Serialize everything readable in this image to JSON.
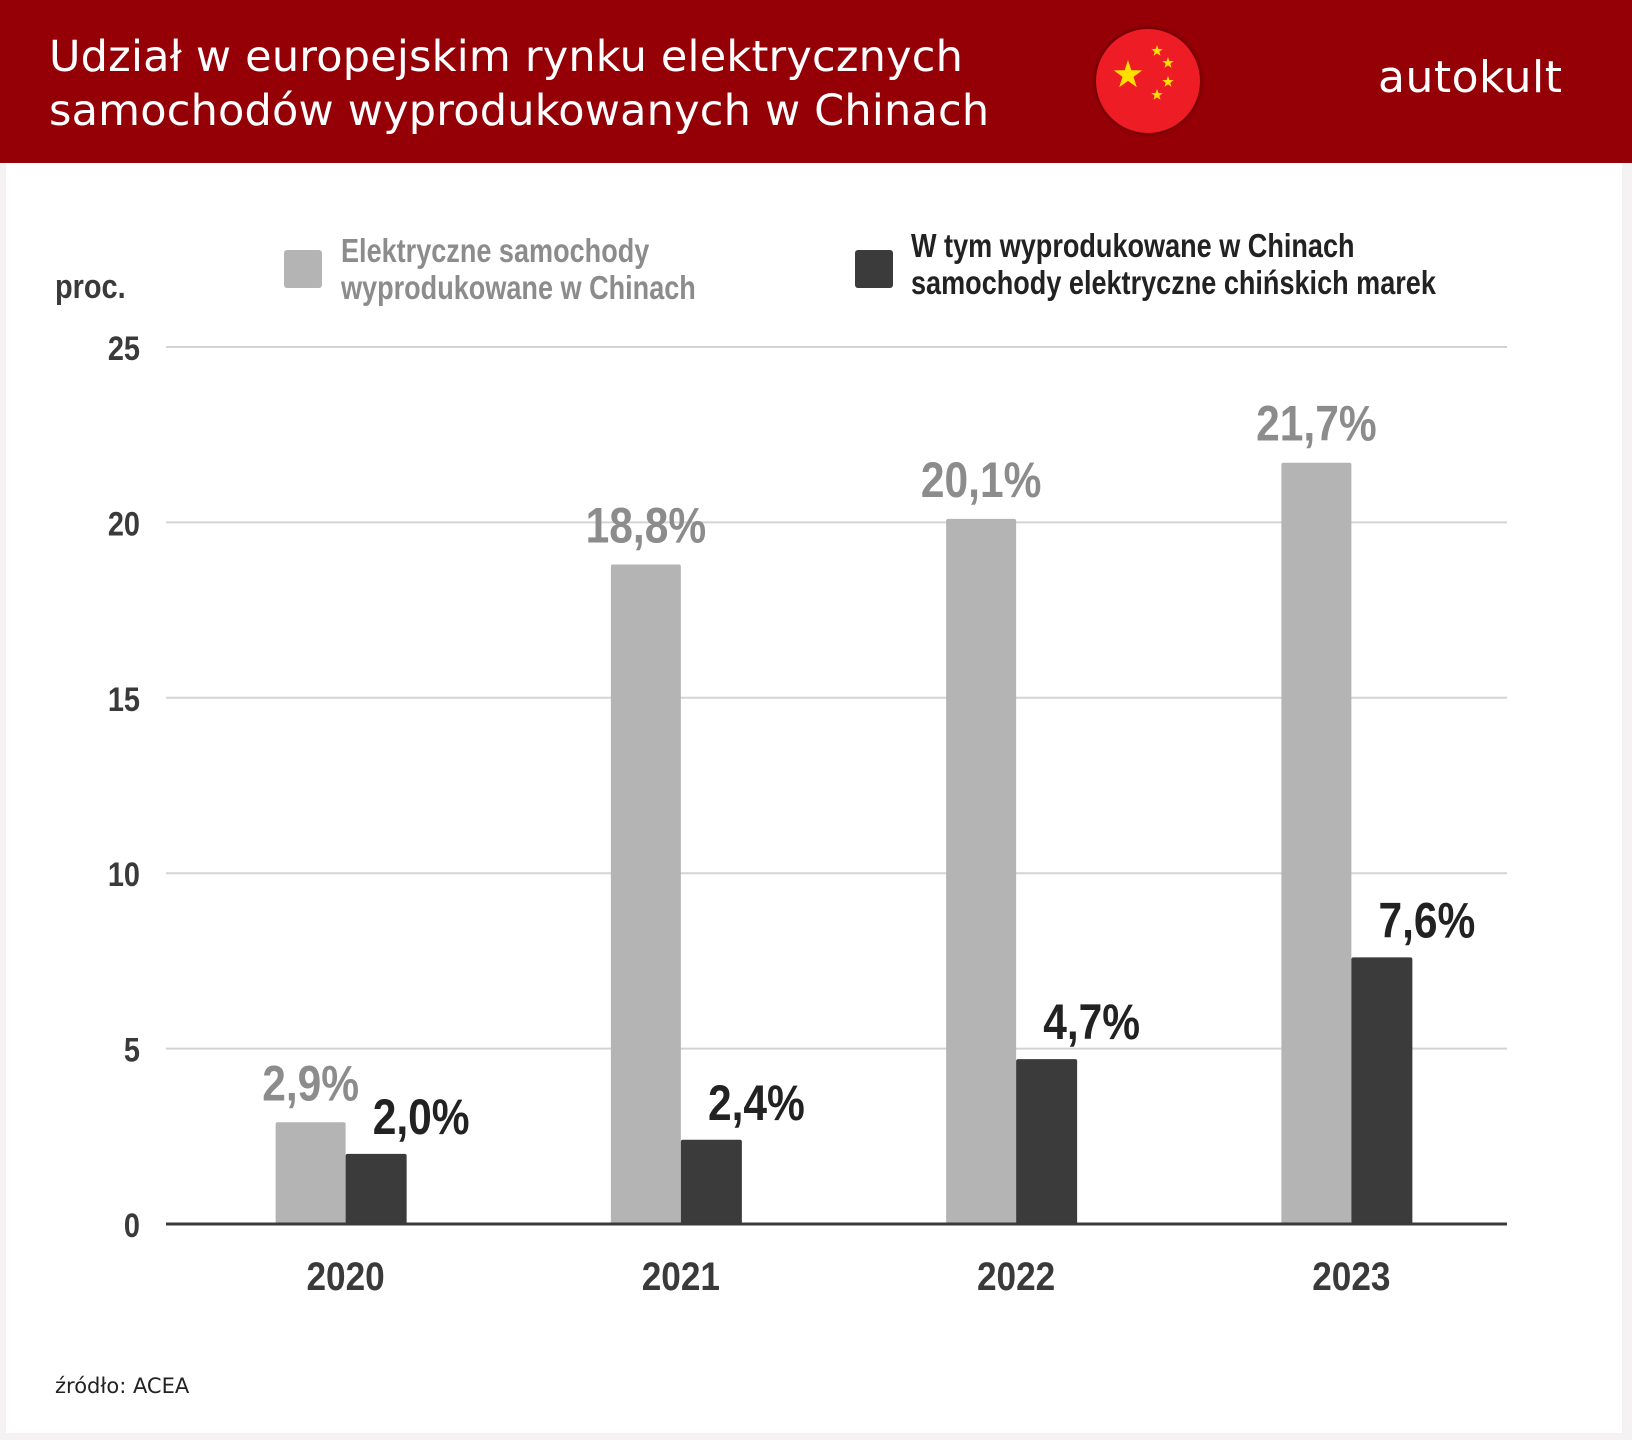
{
  "header": {
    "title_lines": [
      "Udział w europejskim rynku elektrycznych",
      "samochodów wyprodukowanych w Chinach"
    ],
    "flag_icon": "china-flag-icon",
    "brand": "autokult"
  },
  "colors": {
    "header_bg": "#950006",
    "series_light": "#b4b4b4",
    "series_dark": "#3b3b3b",
    "label_light": "#8c8c8c",
    "label_dark": "#222222"
  },
  "legend": [
    {
      "lines": [
        "Elektryczne samochody",
        "wyprodukowane w Chinach"
      ]
    },
    {
      "lines": [
        "W tym wyprodukowane w Chinach",
        "samochody elektryczne chińskich marek"
      ]
    }
  ],
  "source": "źródło: ACEA",
  "chart_data": {
    "type": "bar",
    "title": "Udział w europejskim rynku elektrycznych samochodów wyprodukowanych w Chinach",
    "xlabel": "",
    "ylabel": "proc.",
    "ylim": [
      0,
      25
    ],
    "yticks": [
      "0",
      "5",
      "10",
      "15",
      "20",
      "25"
    ],
    "ytick_values": [
      0,
      5,
      10,
      15,
      20,
      25
    ],
    "grid": true,
    "legend_position": "top",
    "categories": [
      "2020",
      "2021",
      "2022",
      "2023"
    ],
    "series": [
      {
        "name": "Elektryczne samochody wyprodukowane w Chinach",
        "values": [
          2.9,
          18.8,
          20.1,
          21.7
        ],
        "labels": [
          "2,9%",
          "18,8%",
          "20,1%",
          "21,7%"
        ]
      },
      {
        "name": "W tym wyprodukowane w Chinach samochody elektryczne chińskich marek",
        "values": [
          2.0,
          2.4,
          4.7,
          7.6
        ],
        "labels": [
          "2,0%",
          "2,4%",
          "4,7%",
          "7,6%"
        ]
      }
    ]
  }
}
